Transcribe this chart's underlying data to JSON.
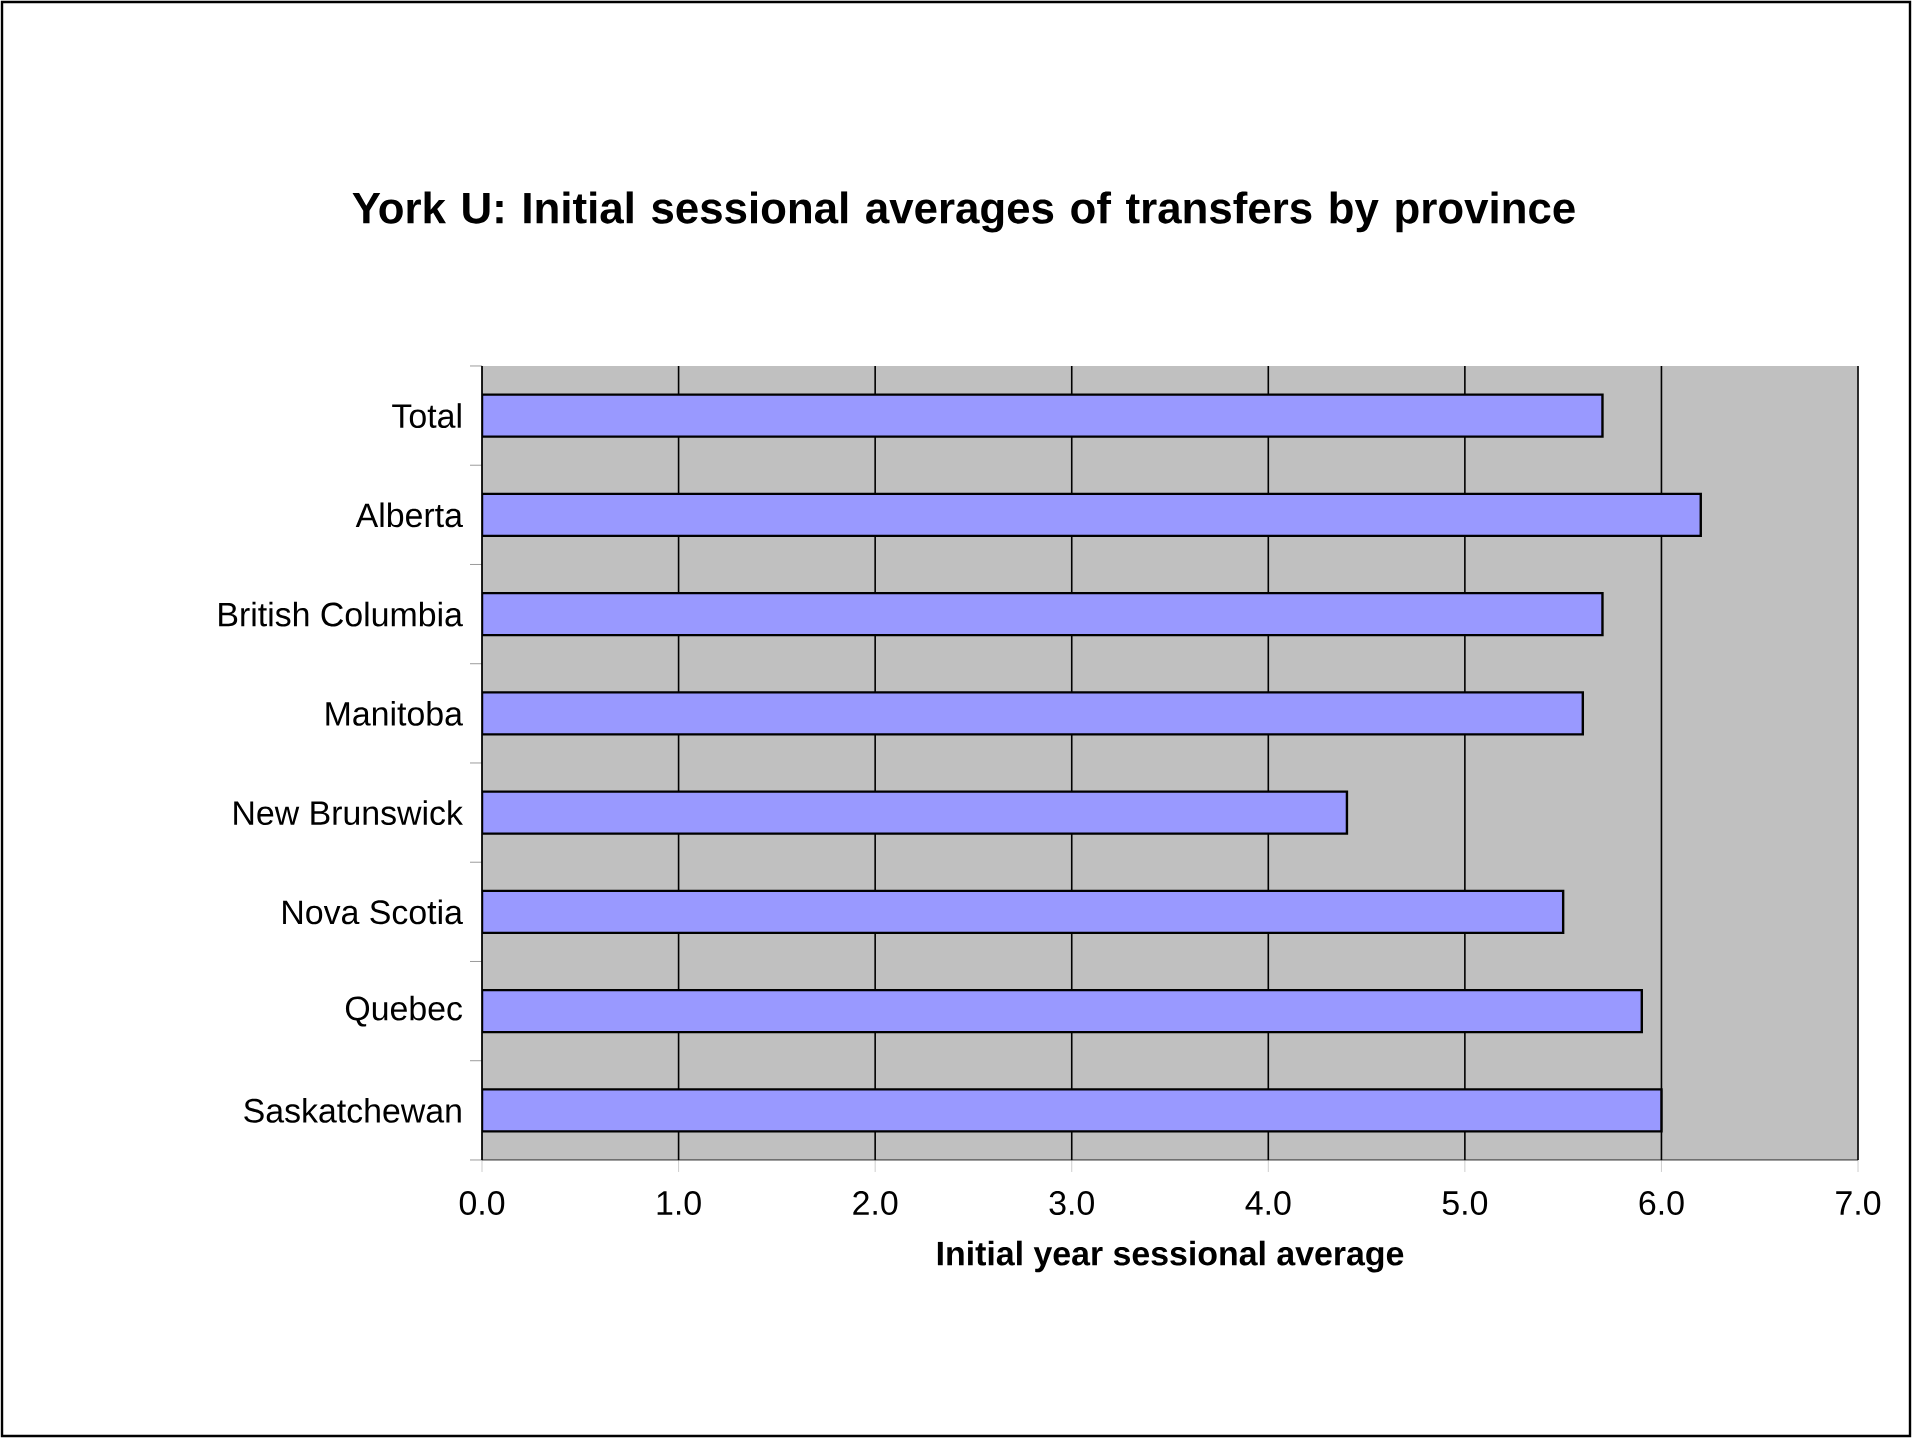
{
  "chart_data": {
    "type": "bar",
    "orientation": "horizontal",
    "title": "York U: Initial sessional averages of transfers by province",
    "xlabel": "Initial year sessional average",
    "categories": [
      "Total",
      "Alberta",
      "British Columbia",
      "Manitoba",
      "New Brunswick",
      "Nova Scotia",
      "Quebec",
      "Saskatchewan"
    ],
    "values": [
      5.7,
      6.2,
      5.7,
      5.6,
      4.4,
      5.5,
      5.9,
      6.0
    ],
    "color": "#9999ff",
    "xlim": [
      0,
      7
    ],
    "xticks": [
      {
        "value": 0,
        "label": "0.0"
      },
      {
        "value": 1,
        "label": "1.0"
      },
      {
        "value": 2,
        "label": "2.0"
      },
      {
        "value": 3,
        "label": "3.0"
      },
      {
        "value": 4,
        "label": "4.0"
      },
      {
        "value": 5,
        "label": "5.0"
      },
      {
        "value": 6,
        "label": "6.0"
      },
      {
        "value": 7,
        "label": "7.0"
      }
    ],
    "grid": "x"
  }
}
